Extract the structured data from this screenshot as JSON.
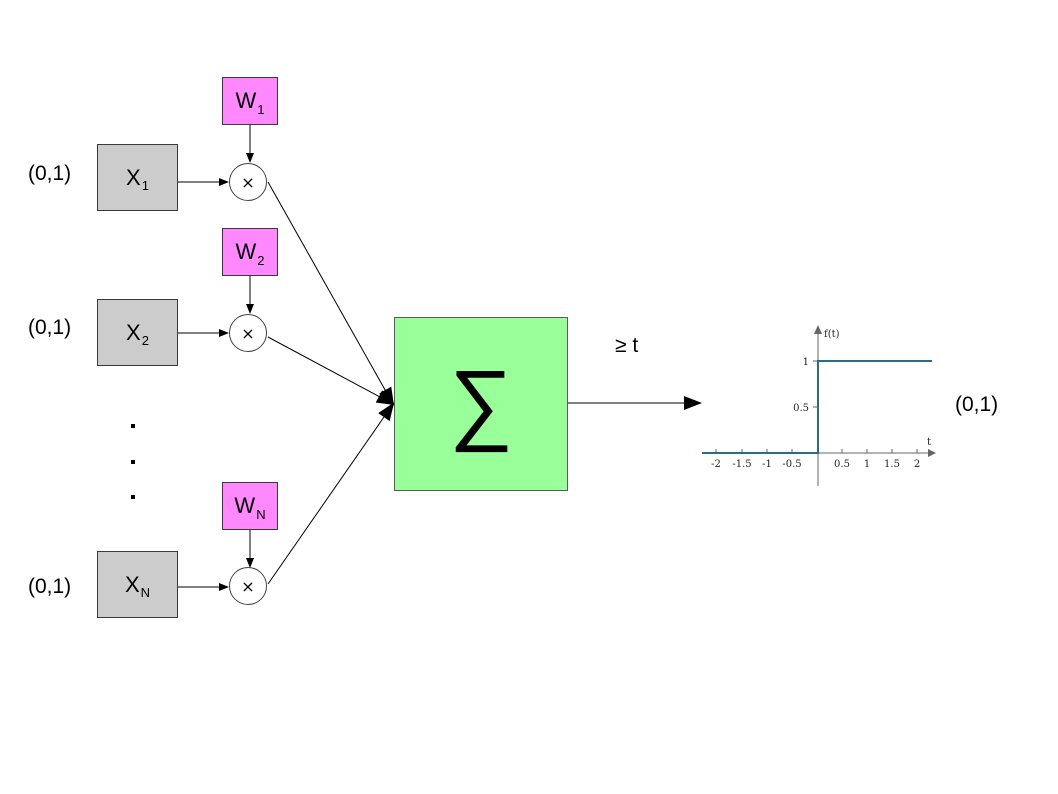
{
  "inputs": [
    {
      "range": "(0,1)",
      "x_letter": "X",
      "x_sub": "1",
      "w_letter": "W",
      "w_sub": "1",
      "op": "×"
    },
    {
      "range": "(0,1)",
      "x_letter": "X",
      "x_sub": "2",
      "w_letter": "W",
      "w_sub": "2",
      "op": "×"
    },
    {
      "range": "(0,1)",
      "x_letter": "X",
      "x_sub": "N",
      "w_letter": "W",
      "w_sub": "N",
      "op": "×"
    }
  ],
  "sum": {
    "symbol": "∑"
  },
  "threshold": "≥ t",
  "output_range": "(0,1)",
  "step_plot": {
    "y_label": "f(t)",
    "x_label": "t",
    "x_ticks": [
      "-2",
      "-1.5",
      "-1",
      "-0.5",
      "0.5",
      "1",
      "1.5",
      "2"
    ],
    "y_ticks": [
      "1",
      "0.5"
    ],
    "step_color": "#2a6f80"
  },
  "colors": {
    "x_box": "#cccccc",
    "w_box": "#ff88ff",
    "sum_box": "#99ff99"
  }
}
